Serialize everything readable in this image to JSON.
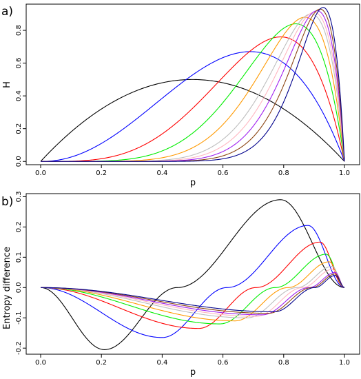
{
  "chart_data": [
    {
      "type": "line",
      "panel_label": "a)",
      "xlabel": "p",
      "ylabel": "H",
      "xlim": [
        0,
        1
      ],
      "ylim": [
        -0.02,
        0.96
      ],
      "xticks": [
        "0.0",
        "0.2",
        "0.4",
        "0.6",
        "0.8",
        "1.0"
      ],
      "yticks": [
        "0.0",
        "0.2",
        "0.4",
        "0.6",
        "0.8"
      ],
      "grid": false,
      "series": [
        {
          "color": "#000000",
          "peak_x": 0.5,
          "peak_y": 0.5
        },
        {
          "color": "#0000ff",
          "peak_x": 0.69,
          "peak_y": 0.67
        },
        {
          "color": "#ff0000",
          "peak_x": 0.79,
          "peak_y": 0.76
        },
        {
          "color": "#00ee00",
          "peak_x": 0.84,
          "peak_y": 0.84
        },
        {
          "color": "#ff9900",
          "peak_x": 0.87,
          "peak_y": 0.88
        },
        {
          "color": "#bebebe",
          "peak_x": 0.89,
          "peak_y": 0.9
        },
        {
          "color": "#ffb6c1",
          "peak_x": 0.9,
          "peak_y": 0.91
        },
        {
          "color": "#a020f0",
          "peak_x": 0.91,
          "peak_y": 0.92
        },
        {
          "color": "#8b4513",
          "peak_x": 0.92,
          "peak_y": 0.93
        },
        {
          "color": "#00008b",
          "peak_x": 0.93,
          "peak_y": 0.94
        }
      ]
    },
    {
      "type": "line",
      "panel_label": "b)",
      "xlabel": "p",
      "ylabel": "Entropy difference",
      "xlim": [
        0,
        1
      ],
      "ylim": [
        -0.22,
        0.31
      ],
      "xticks": [
        "0.0",
        "0.2",
        "0.4",
        "0.6",
        "0.8",
        "1.0"
      ],
      "yticks": [
        "-0.2",
        "-0.1",
        "0.0",
        "0.1",
        "0.2",
        "0.3"
      ],
      "grid": false,
      "series": [
        {
          "color": "#000000",
          "min_x": 0.21,
          "min_y": -0.205,
          "max_x": 0.79,
          "max_y": 0.29
        },
        {
          "color": "#0000ff",
          "min_x": 0.4,
          "min_y": -0.165,
          "max_x": 0.88,
          "max_y": 0.205
        },
        {
          "color": "#ff0000",
          "min_x": 0.52,
          "min_y": -0.135,
          "max_x": 0.92,
          "max_y": 0.15
        },
        {
          "color": "#00ee00",
          "min_x": 0.59,
          "min_y": -0.12,
          "max_x": 0.94,
          "max_y": 0.11
        },
        {
          "color": "#ff9900",
          "min_x": 0.64,
          "min_y": -0.11,
          "max_x": 0.95,
          "max_y": 0.085
        },
        {
          "color": "#bebebe",
          "min_x": 0.68,
          "min_y": -0.1,
          "max_x": 0.96,
          "max_y": 0.07
        },
        {
          "color": "#ffb6c1",
          "min_x": 0.71,
          "min_y": -0.095,
          "max_x": 0.96,
          "max_y": 0.06
        },
        {
          "color": "#a020f0",
          "min_x": 0.73,
          "min_y": -0.09,
          "max_x": 0.97,
          "max_y": 0.05
        },
        {
          "color": "#8b4513",
          "min_x": 0.75,
          "min_y": -0.085,
          "max_x": 0.97,
          "max_y": 0.045
        },
        {
          "color": "#00008b",
          "min_x": 0.77,
          "min_y": -0.08,
          "max_x": 0.97,
          "max_y": 0.04
        }
      ]
    }
  ]
}
